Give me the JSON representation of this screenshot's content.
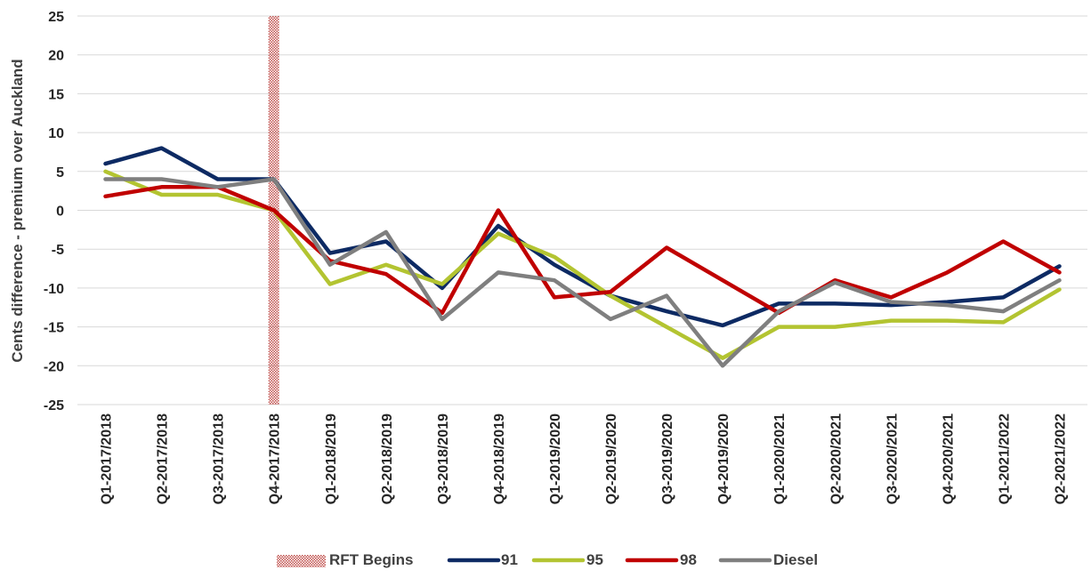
{
  "chart_data": {
    "type": "line",
    "ylabel": "Cents difference - premium over Auckland",
    "xlabel": "",
    "ylim": [
      -25,
      25
    ],
    "yticks": [
      "25",
      "20",
      "15",
      "10",
      "5",
      "0",
      "-5",
      "-10",
      "-15",
      "-20",
      "-25"
    ],
    "grid": "horizontal",
    "legend_position": "bottom",
    "categories": [
      "Q1-2017/2018",
      "Q2-2017/2018",
      "Q3-2017/2018",
      "Q4-2017/2018",
      "Q1-2018/2019",
      "Q2-2018/2019",
      "Q3-2018/2019",
      "Q4-2018/2019",
      "Q1-2019/2020",
      "Q2-2019/2020",
      "Q3-2019/2020",
      "Q4-2019/2020",
      "Q1-2020/2021",
      "Q2-2020/2021",
      "Q3-2020/2021",
      "Q4-2020/2021",
      "Q1-2021/2022",
      "Q2-2021/2022"
    ],
    "marker": {
      "name": "RFT Begins",
      "category": "Q4-2017/2018",
      "color": "#c0504d"
    },
    "series": [
      {
        "name": "91",
        "color": "#0d2a63",
        "values": [
          6,
          8,
          4,
          4,
          -5.5,
          -4,
          -10,
          -2,
          -7,
          -11,
          -13,
          -14.8,
          -12,
          -12,
          -12.2,
          -11.8,
          -11.2,
          -7.2
        ]
      },
      {
        "name": "95",
        "color": "#b3c431",
        "values": [
          5,
          2,
          2,
          0,
          -9.5,
          -7,
          -9.5,
          -3,
          -6,
          -11,
          -15,
          -19,
          -15,
          -15,
          -14.2,
          -14.2,
          -14.4,
          -10.2
        ]
      },
      {
        "name": "98",
        "color": "#c00000",
        "values": [
          1.8,
          3,
          3,
          0,
          -6.5,
          -8.2,
          -13.2,
          0,
          -11.2,
          -10.5,
          -4.8,
          -9,
          -13.2,
          -9,
          -11.2,
          -8,
          -4,
          -8
        ]
      },
      {
        "name": "Diesel",
        "color": "#7f7f7f",
        "values": [
          4,
          4,
          3,
          4,
          -7,
          -2.8,
          -14,
          -8,
          -9,
          -14,
          -11,
          -20,
          -13,
          -9.3,
          -11.8,
          -12.2,
          -13,
          -9
        ]
      }
    ]
  }
}
